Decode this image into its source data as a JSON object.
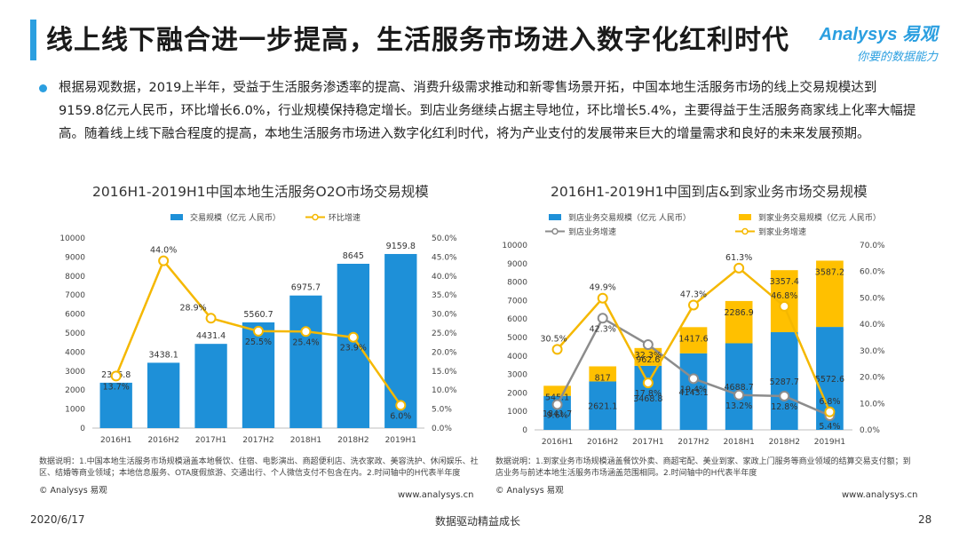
{
  "header": {
    "title": "线上线下融合进一步提高，生活服务市场进入数字化红利时代",
    "brand_name": "Analysys 易观",
    "brand_tagline": "你要的数据能力"
  },
  "summary": "根据易观数据，2019上半年，受益于生活服务渗透率的提高、消费升级需求推动和新零售场景开拓，中国本地生活服务市场的线上交易规模达到9159.8亿元人民币，环比增长6.0%，行业规模保持稳定增长。到店业务继续占据主导地位，环比增长5.4%，主要得益于生活服务商家线上化率大幅提高。随着线上线下融合程度的提高，本地生活服务市场进入数字化红利时代，将为产业支付的发展带来巨大的增量需求和良好的未来发展预期。",
  "left": {
    "title": "2016H1-2019H1中国本地生活服务O2O市场交易规模",
    "note": "数据说明：1.中国本地生活服务市场规模涵盖本地餐饮、住宿、电影演出、商超便利店、洗衣家政、美容洗护、休闲娱乐、社区、结婚等商业领域；本地信息服务、OTA度假旅游、交通出行、个人微信支付不包含在内。2.时间轴中的H代表半年度",
    "copyright": "© Analysys 易观",
    "site": "www.analysys.cn"
  },
  "right": {
    "title": "2016H1-2019H1中国到店&到家业务市场交易规模",
    "note": "数据说明：1.到家业务市场规模涵盖餐饮外卖、商超宅配、美业到家、家政上门服务等商业领域的结算交易支付额；到店业务与前述本地生活服务市场涵盖范围相同。2.时间轴中的H代表半年度",
    "copyright": "© Analysys 易观",
    "site": "www.analysys.cn"
  },
  "footer": {
    "date": "2020/6/17",
    "slogan": "数据驱动精益成长",
    "page": "28"
  },
  "colors": {
    "accent": "#2b9fe0",
    "bar_blue": "#1e90d8",
    "bar_yellow": "#ffc000",
    "line_yellow": "#f5b800",
    "line_gray": "#8c8c8c"
  },
  "chart_data": [
    {
      "type": "bar",
      "title": "2016H1-2019H1中国本地生活服务O2O市场交易规模",
      "categories": [
        "2016H1",
        "2016H2",
        "2017H1",
        "2017H2",
        "2018H1",
        "2018H2",
        "2019H1"
      ],
      "series": [
        {
          "name": "交易规模（亿元 人民币）",
          "type": "bar",
          "axis": "left",
          "color": "#1e90d8",
          "values": [
            2386.8,
            3438.1,
            4431.4,
            5560.7,
            6975.7,
            8645,
            9159.8
          ],
          "labels": [
            "2386.8",
            "3438.1",
            "4431.4",
            "5560.7",
            "6975.7",
            "8645",
            "9159.8"
          ]
        },
        {
          "name": "环比增速",
          "type": "line",
          "axis": "right",
          "color": "#f5b800",
          "values": [
            13.7,
            44.0,
            28.9,
            25.5,
            25.4,
            23.9,
            6.0
          ],
          "labels": [
            "13.7%",
            "44.0%",
            "28.9%",
            "25.5%",
            "25.4%",
            "23.9%",
            "6.0%"
          ]
        }
      ],
      "y_left": {
        "min": 0,
        "max": 10000,
        "ticks": [
          "0",
          "1000",
          "2000",
          "3000",
          "4000",
          "5000",
          "6000",
          "7000",
          "8000",
          "9000",
          "10000"
        ]
      },
      "y_right": {
        "min": 0,
        "max": 50,
        "ticks": [
          "0.0%",
          "5.0%",
          "10.0%",
          "15.0%",
          "20.0%",
          "25.0%",
          "30.0%",
          "35.0%",
          "40.0%",
          "45.0%",
          "50.0%"
        ]
      },
      "legend": "top",
      "grid": false
    },
    {
      "type": "bar",
      "stacked": true,
      "title": "2016H1-2019H1中国到店&到家业务市场交易规模",
      "categories": [
        "2016H1",
        "2016H2",
        "2017H1",
        "2017H2",
        "2018H1",
        "2018H2",
        "2019H1"
      ],
      "series": [
        {
          "name": "到店业务交易规模（亿元 人民币）",
          "type": "bar",
          "axis": "left",
          "color": "#1e90d8",
          "values": [
            1841.7,
            2621.1,
            3468.8,
            4143.1,
            4688.7,
            5287.7,
            5572.6
          ],
          "labels": [
            "1841.7",
            "2621.1",
            "3468.8",
            "4143.1",
            "4688.7",
            "5287.7",
            "5572.6"
          ]
        },
        {
          "name": "到家业务交易规模（亿元 人民币）",
          "type": "bar",
          "axis": "left",
          "color": "#ffc000",
          "values": [
            545.1,
            817,
            962.6,
            1417.6,
            2286.9,
            3357.4,
            3587.2
          ],
          "labels": [
            "545.1",
            "817",
            "962.6",
            "1417.6",
            "2286.9",
            "3357.4",
            "3587.2"
          ]
        },
        {
          "name": "到店业务增速",
          "type": "line",
          "axis": "right",
          "color": "#8c8c8c",
          "values": [
            9.6,
            42.3,
            32.3,
            19.4,
            13.2,
            12.8,
            5.4
          ],
          "labels": [
            "9.6%",
            "42.3%",
            "32.3%",
            "19.4%",
            "13.2%",
            "12.8%",
            "5.4%"
          ]
        },
        {
          "name": "到家业务增速",
          "type": "line",
          "axis": "right",
          "color": "#f5b800",
          "values": [
            30.5,
            49.9,
            17.8,
            47.3,
            61.3,
            46.8,
            6.8
          ],
          "labels": [
            "30.5%",
            "49.9%",
            "17.8%",
            "47.3%",
            "61.3%",
            "46.8%",
            "6.8%"
          ]
        }
      ],
      "y_left": {
        "min": 0,
        "max": 10000,
        "ticks": [
          "0",
          "1000",
          "2000",
          "3000",
          "4000",
          "5000",
          "6000",
          "7000",
          "8000",
          "9000",
          "10000"
        ]
      },
      "y_right": {
        "min": 0,
        "max": 70,
        "ticks": [
          "0.0%",
          "10.0%",
          "20.0%",
          "30.0%",
          "40.0%",
          "50.0%",
          "60.0%",
          "70.0%"
        ]
      },
      "legend": "top",
      "grid": false
    }
  ]
}
